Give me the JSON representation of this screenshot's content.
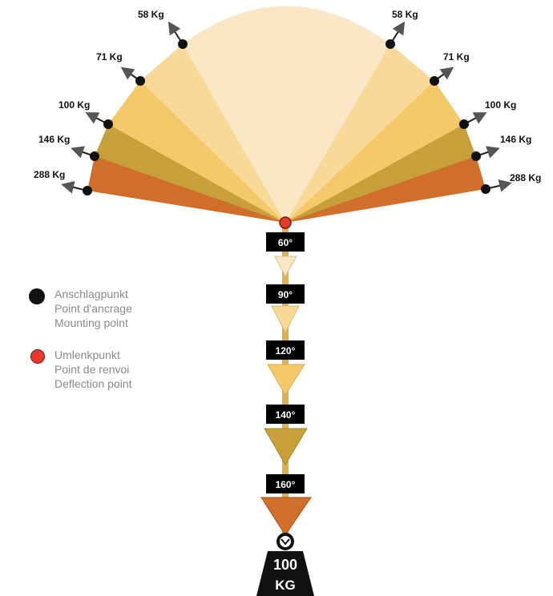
{
  "left_loads": [
    "58 Kg",
    "71 Kg",
    "100 Kg",
    "146 Kg",
    "288 Kg"
  ],
  "right_loads": [
    "58 Kg",
    "71 Kg",
    "100 Kg",
    "146 Kg",
    "288 Kg"
  ],
  "angles": [
    "60°",
    "90°",
    "120°",
    "140°",
    "160°"
  ],
  "sector_colors": [
    "#fbe7c6",
    "#f9d998",
    "#f5c96a",
    "#c7a03c",
    "#d06e2c"
  ],
  "weight": {
    "line1": "100",
    "line2": "KG"
  },
  "legend": {
    "mounting": [
      "Anschlagpunkt",
      "Point d'ancrage",
      "Mounting point"
    ],
    "deflection": [
      "Umlenkpunkt",
      "Point de renvoi",
      "Deflection point"
    ]
  }
}
